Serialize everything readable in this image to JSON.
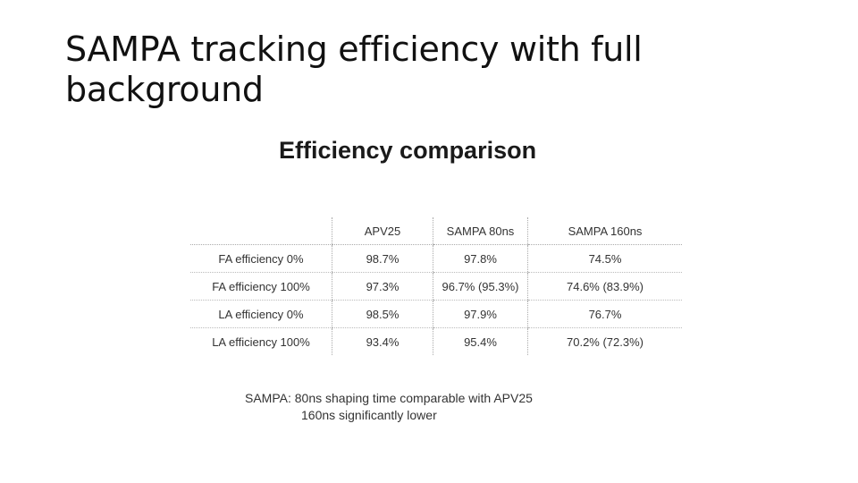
{
  "slide": {
    "title_line1": "SAMPA tracking efficiency with full",
    "title_line2": "background"
  },
  "figure": {
    "heading": "Efficiency comparison",
    "columns": [
      "",
      "APV25",
      "SAMPA 80ns",
      "SAMPA 160ns"
    ],
    "rows": [
      [
        "FA efficiency 0%",
        "98.7%",
        "97.8%",
        "74.5%"
      ],
      [
        "FA efficiency 100%",
        "97.3%",
        "96.7% (95.3%)",
        "74.6% (83.9%)"
      ],
      [
        "LA efficiency 0%",
        "98.5%",
        "97.9%",
        "76.7%"
      ],
      [
        "LA efficiency 100%",
        "93.4%",
        "95.4%",
        "70.2% (72.3%)"
      ]
    ],
    "note_line1": "SAMPA: 80ns shaping time comparable with APV25",
    "note_line2": "160ns significantly lower"
  }
}
